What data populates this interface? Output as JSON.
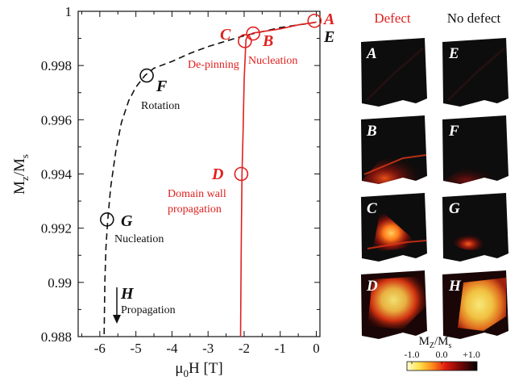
{
  "colors": {
    "defect": "#e0201f",
    "nodefect": "#111111",
    "panel_bg": "#0c0c0c"
  },
  "chart_data": {
    "type": "line",
    "xlabel_main": "μ",
    "xlabel_sub": "0",
    "xlabel_rest": "H [T]",
    "ylabel_main": "M",
    "ylabel_sub1": "z",
    "ylabel_mid": "/M",
    "ylabel_sub2": "s",
    "xlim": [
      -6.6,
      0.1
    ],
    "ylim": [
      0.988,
      1.0
    ],
    "xticks": [
      -6,
      -5,
      -4,
      -3,
      -2,
      -1,
      0
    ],
    "xtick_labels": [
      "-6",
      "-5",
      "-4",
      "-3",
      "-2",
      "-1",
      "0"
    ],
    "yticks": [
      0.988,
      0.99,
      0.992,
      0.994,
      0.996,
      0.998,
      1.0
    ],
    "ytick_labels": [
      "0.988",
      "0.99",
      "0.992",
      "0.994",
      "0.996",
      "0.998",
      "1"
    ],
    "series": [
      {
        "style": "dashed",
        "color": "#111111",
        "x": [
          0,
          -0.2,
          -0.5,
          -1.0,
          -1.5,
          -2.0,
          -2.5,
          -3.0,
          -3.5,
          -4.0,
          -4.5,
          -4.75,
          -5.0,
          -5.2,
          -5.4,
          -5.55,
          -5.7,
          -5.78,
          -5.83,
          -5.86,
          -5.88
        ],
        "y": [
          0.9996,
          0.99955,
          0.9995,
          0.9994,
          0.99925,
          0.9991,
          0.9989,
          0.9987,
          0.99845,
          0.99815,
          0.9979,
          0.99763,
          0.9972,
          0.9967,
          0.9959,
          0.9949,
          0.9935,
          0.9923,
          0.9913,
          0.99,
          0.988
        ]
      },
      {
        "style": "solid",
        "color": "#e0201f",
        "x": [
          0,
          -0.5,
          -1.0,
          -1.5,
          -1.75,
          -1.9,
          -1.95,
          -2.0,
          -2.03,
          -2.06,
          -2.08,
          -2.1
        ],
        "y": [
          0.9996,
          0.9995,
          0.99935,
          0.99925,
          0.9992,
          0.9991,
          0.99895,
          0.9975,
          0.9955,
          0.994,
          0.9915,
          0.988
        ]
      }
    ],
    "points": [
      {
        "id": "A",
        "x": -0.05,
        "y": 0.99965,
        "color": "#e0201f",
        "label": "A"
      },
      {
        "id": "E",
        "x": -0.05,
        "y": 0.99965,
        "color": "#111111",
        "label": "E"
      },
      {
        "id": "B",
        "x": -1.75,
        "y": 0.99918,
        "color": "#e0201f",
        "label": "B"
      },
      {
        "id": "C",
        "x": -1.98,
        "y": 0.9989,
        "color": "#e0201f",
        "label": "C"
      },
      {
        "id": "D",
        "x": -2.08,
        "y": 0.994,
        "color": "#e0201f",
        "label": "D"
      },
      {
        "id": "F",
        "x": -4.7,
        "y": 0.99763,
        "color": "#111111",
        "label": "F"
      },
      {
        "id": "G",
        "x": -5.8,
        "y": 0.99232,
        "color": "#111111",
        "label": "G"
      }
    ],
    "annotations": {
      "A": "A",
      "E": "E",
      "B": "B",
      "nucleation_red": "Nucleation",
      "C": "C",
      "depinning": "De-pinning",
      "D": "D",
      "dw1": "Domain wall",
      "dw2": "propagation",
      "F": "F",
      "rotation": "Rotation",
      "G": "G",
      "nucleation_black": "Nucleation",
      "H": "H",
      "propagation": "Propagation"
    }
  },
  "panels": {
    "defect_header": "Defect",
    "nodefect_header": "No defect",
    "defect_letters": [
      "A",
      "B",
      "C",
      "D"
    ],
    "nodefect_letters": [
      "E",
      "F",
      "G",
      "H"
    ]
  },
  "colorbar": {
    "title_main": "M",
    "title_sub1": "Z",
    "title_mid": "/M",
    "title_sub2": "s",
    "tick_labels": [
      "-1.0",
      "0.0",
      "+1.0"
    ]
  }
}
